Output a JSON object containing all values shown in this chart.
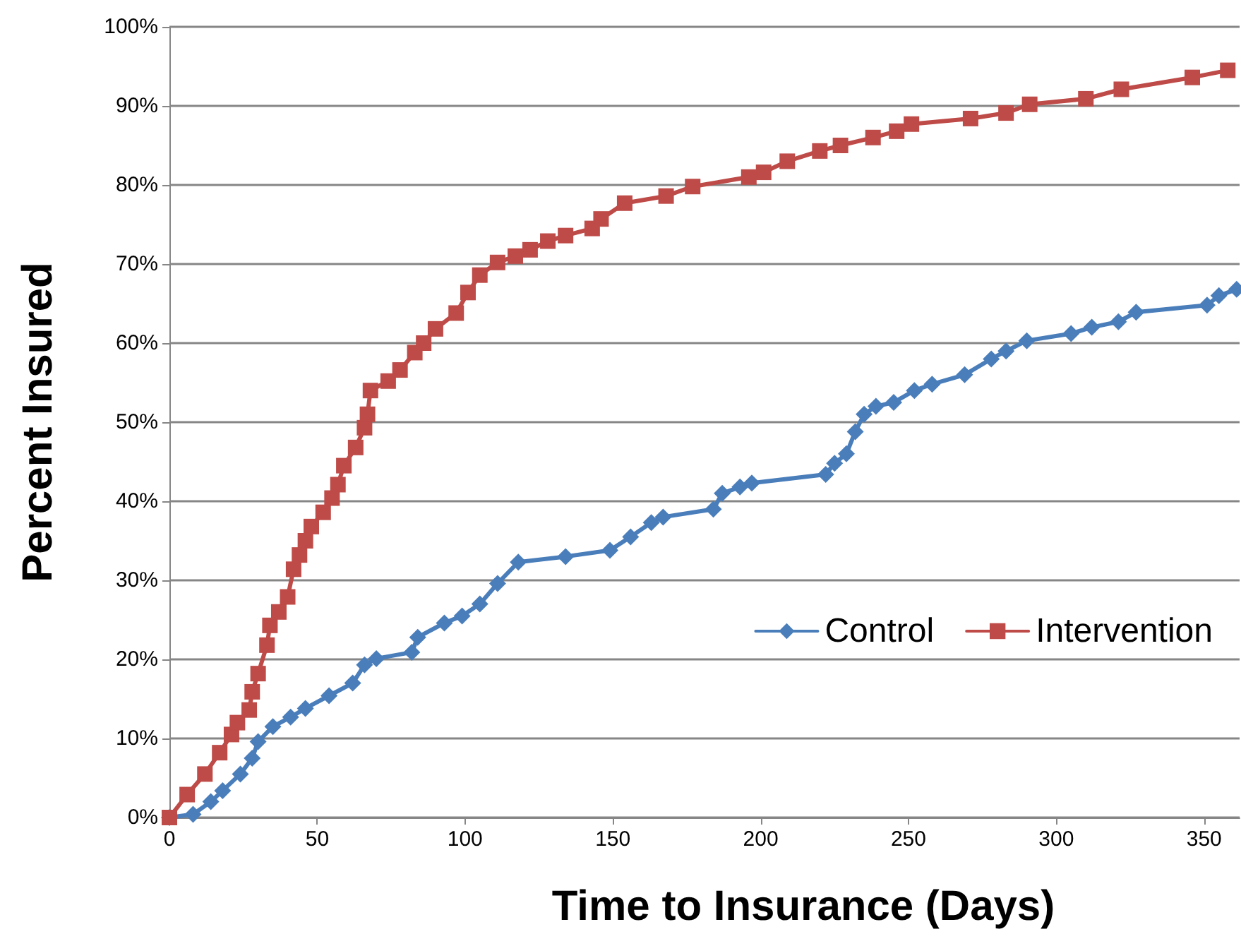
{
  "chart_data": {
    "type": "line",
    "xlabel": "Time to Insurance (Days)",
    "ylabel": "Percent Insured",
    "xlim": [
      0,
      362
    ],
    "xticks": [
      0,
      50,
      100,
      150,
      200,
      250,
      300,
      350
    ],
    "ylim": [
      0,
      100
    ],
    "yticks": [
      {
        "value": 0,
        "label": "0%"
      },
      {
        "value": 10,
        "label": "10%"
      },
      {
        "value": 20,
        "label": "20%"
      },
      {
        "value": 30,
        "label": "30%"
      },
      {
        "value": 40,
        "label": "40%"
      },
      {
        "value": 50,
        "label": "50%"
      },
      {
        "value": 60,
        "label": "60%"
      },
      {
        "value": 70,
        "label": "70%"
      },
      {
        "value": 80,
        "label": "80%"
      },
      {
        "value": 90,
        "label": "90%"
      },
      {
        "value": 100,
        "label": "100%"
      }
    ],
    "grid": "y",
    "legend": "right",
    "line_style": "solid",
    "series": [
      {
        "name": "Control",
        "color": "#4a7ebb",
        "marker": "diamond",
        "x": [
          0,
          8,
          14,
          18,
          24,
          28,
          30,
          35,
          41,
          46,
          54,
          62,
          66,
          70,
          82,
          84,
          93,
          99,
          105,
          111,
          118,
          134,
          149,
          156,
          163,
          167,
          184,
          187,
          193,
          197,
          222,
          225,
          229,
          232,
          235,
          239,
          245,
          252,
          258,
          269,
          278,
          283,
          290,
          305,
          312,
          321,
          327,
          351,
          355,
          361
        ],
        "values": [
          0,
          0.4,
          2,
          3.4,
          5.5,
          7.5,
          9.6,
          11.5,
          12.7,
          13.8,
          15.4,
          17,
          19.3,
          20.1,
          20.9,
          22.8,
          24.6,
          25.5,
          27,
          29.6,
          32.3,
          33,
          33.8,
          35.5,
          37.3,
          38,
          39,
          41,
          41.8,
          42.3,
          43.4,
          44.8,
          46,
          48.8,
          51,
          52,
          52.5,
          54,
          54.8,
          56,
          58,
          59,
          60.3,
          61.2,
          62,
          62.7,
          63.9,
          64.8,
          66,
          66.8
        ]
      },
      {
        "name": "Intervention",
        "color": "#be4b48",
        "marker": "square",
        "x": [
          0,
          6,
          12,
          17,
          21,
          23,
          27,
          28,
          30,
          33,
          34,
          37,
          40,
          42,
          44,
          46,
          48,
          52,
          55,
          57,
          59,
          63,
          66,
          67,
          68,
          74,
          78,
          83,
          86,
          90,
          97,
          101,
          105,
          111,
          117,
          122,
          128,
          134,
          143,
          146,
          154,
          168,
          177,
          196,
          201,
          209,
          220,
          227,
          238,
          246,
          251,
          271,
          283,
          291,
          310,
          322,
          346,
          358
        ],
        "values": [
          0,
          2.9,
          5.5,
          8.2,
          10.5,
          12,
          13.6,
          15.9,
          18.2,
          21.8,
          24.3,
          26,
          27.9,
          31.4,
          33.2,
          35,
          36.8,
          38.6,
          40.4,
          42.1,
          44.5,
          46.8,
          49.3,
          51,
          54,
          55.2,
          56.6,
          58.8,
          60,
          61.8,
          63.8,
          66.4,
          68.6,
          70.2,
          71,
          71.8,
          72.9,
          73.6,
          74.5,
          75.7,
          77.7,
          78.6,
          79.8,
          81,
          81.6,
          83,
          84.3,
          85,
          86,
          86.8,
          87.7,
          88.4,
          89.1,
          90.2,
          90.9,
          92.1,
          93.6,
          94.5
        ]
      }
    ]
  }
}
